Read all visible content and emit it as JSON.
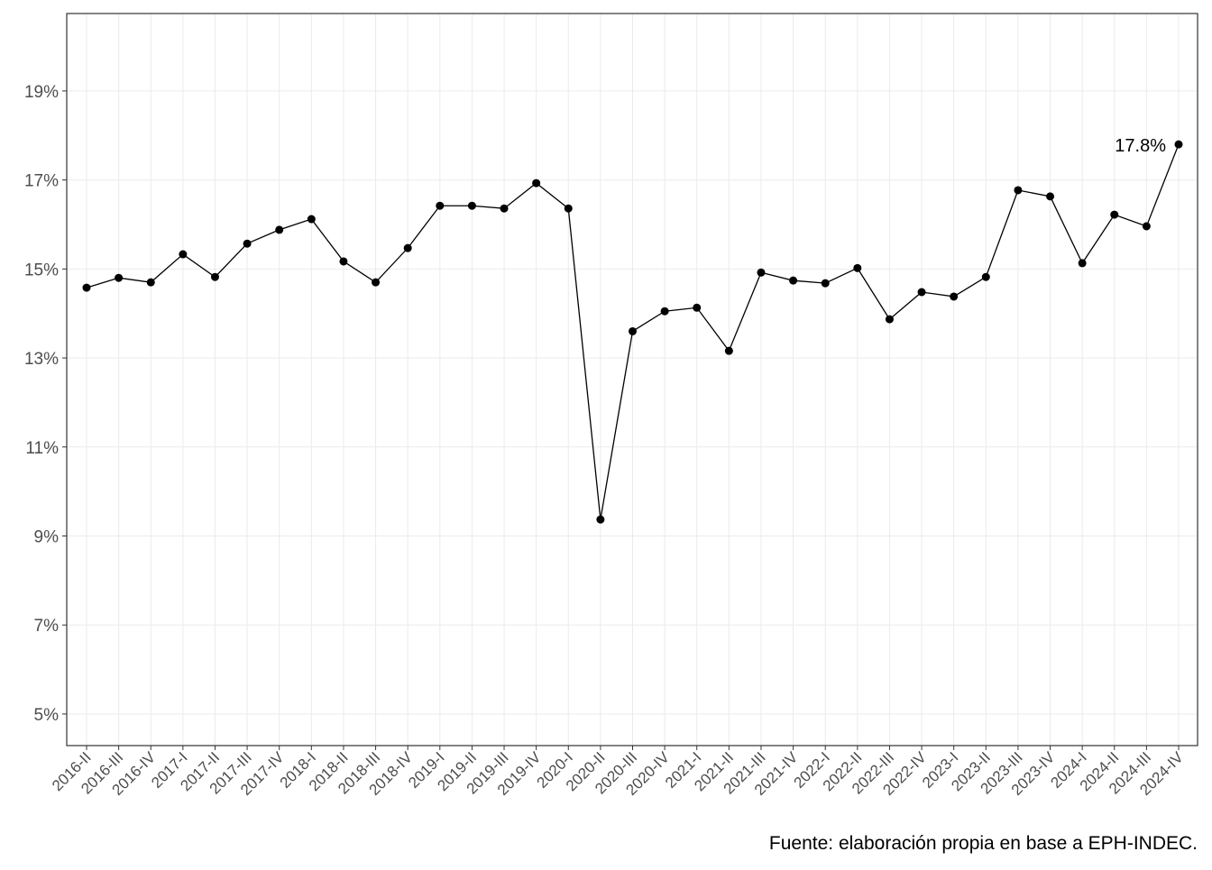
{
  "chart_data": {
    "type": "line",
    "categories": [
      "2016-II",
      "2016-III",
      "2016-IV",
      "2017-I",
      "2017-II",
      "2017-III",
      "2017-IV",
      "2018-I",
      "2018-II",
      "2018-III",
      "2018-IV",
      "2019-I",
      "2019-II",
      "2019-III",
      "2019-IV",
      "2020-I",
      "2020-II",
      "2020-III",
      "2020-IV",
      "2021-I",
      "2021-II",
      "2021-III",
      "2021-IV",
      "2022-I",
      "2022-II",
      "2022-III",
      "2022-IV",
      "2023-I",
      "2023-II",
      "2023-III",
      "2023-IV",
      "2024-I",
      "2024-II",
      "2024-III",
      "2024-IV"
    ],
    "values": [
      14.58,
      14.8,
      14.7,
      15.33,
      14.82,
      15.57,
      15.88,
      16.12,
      15.17,
      14.7,
      15.47,
      16.42,
      16.42,
      16.36,
      16.93,
      16.36,
      9.37,
      13.6,
      14.05,
      14.13,
      13.16,
      14.92,
      14.74,
      14.68,
      15.02,
      13.87,
      14.48,
      14.38,
      14.82,
      16.77,
      16.63,
      15.13,
      16.22,
      15.96,
      17.8
    ],
    "value_labels": [
      null,
      null,
      null,
      null,
      null,
      null,
      null,
      null,
      null,
      null,
      null,
      null,
      null,
      null,
      null,
      null,
      null,
      null,
      null,
      null,
      null,
      null,
      null,
      null,
      null,
      null,
      null,
      null,
      null,
      null,
      null,
      null,
      null,
      null,
      "17.8%"
    ],
    "color": "#000000",
    "ylim": [
      4.29,
      20.74
    ],
    "yticks": [
      {
        "value": 5,
        "label": "5%"
      },
      {
        "value": 7,
        "label": "7%"
      },
      {
        "value": 9,
        "label": "9%"
      },
      {
        "value": 11,
        "label": "11%"
      },
      {
        "value": 13,
        "label": "13%"
      },
      {
        "value": 15,
        "label": "15%"
      },
      {
        "value": 17,
        "label": "17%"
      },
      {
        "value": 19,
        "label": "19%"
      }
    ],
    "grid": true,
    "caption": "Fuente: elaboración propia en base a EPH-INDEC."
  }
}
